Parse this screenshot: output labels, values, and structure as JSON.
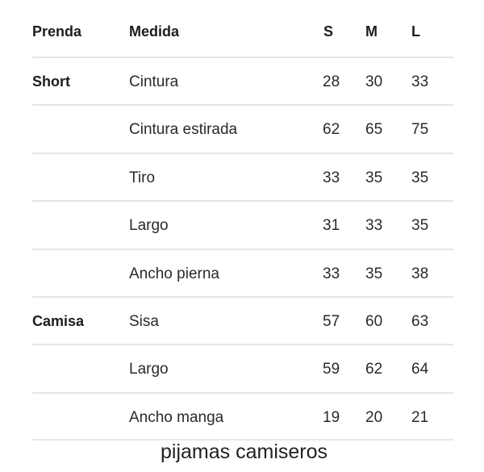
{
  "headers": {
    "prenda": "Prenda",
    "medida": "Medida",
    "s": "S",
    "m": "M",
    "l": "L"
  },
  "rows": [
    {
      "prenda": "Short",
      "medida": "Cintura",
      "s": "28",
      "m": "30",
      "l": "33"
    },
    {
      "prenda": "",
      "medida": "Cintura estirada",
      "s": "62",
      "m": "65",
      "l": "75"
    },
    {
      "prenda": "",
      "medida": "Tiro",
      "s": "33",
      "m": "35",
      "l": "35"
    },
    {
      "prenda": "",
      "medida": "Largo",
      "s": "31",
      "m": "33",
      "l": "35"
    },
    {
      "prenda": "",
      "medida": "Ancho pierna",
      "s": "33",
      "m": "35",
      "l": "38"
    },
    {
      "prenda": "Camisa",
      "medida": "Sisa",
      "s": "57",
      "m": "60",
      "l": "63"
    },
    {
      "prenda": "",
      "medida": "Largo",
      "s": "59",
      "m": "62",
      "l": "64"
    },
    {
      "prenda": "",
      "medida": "Ancho manga",
      "s": "19",
      "m": "20",
      "l": "21"
    }
  ],
  "caption": "pijamas camiseros"
}
